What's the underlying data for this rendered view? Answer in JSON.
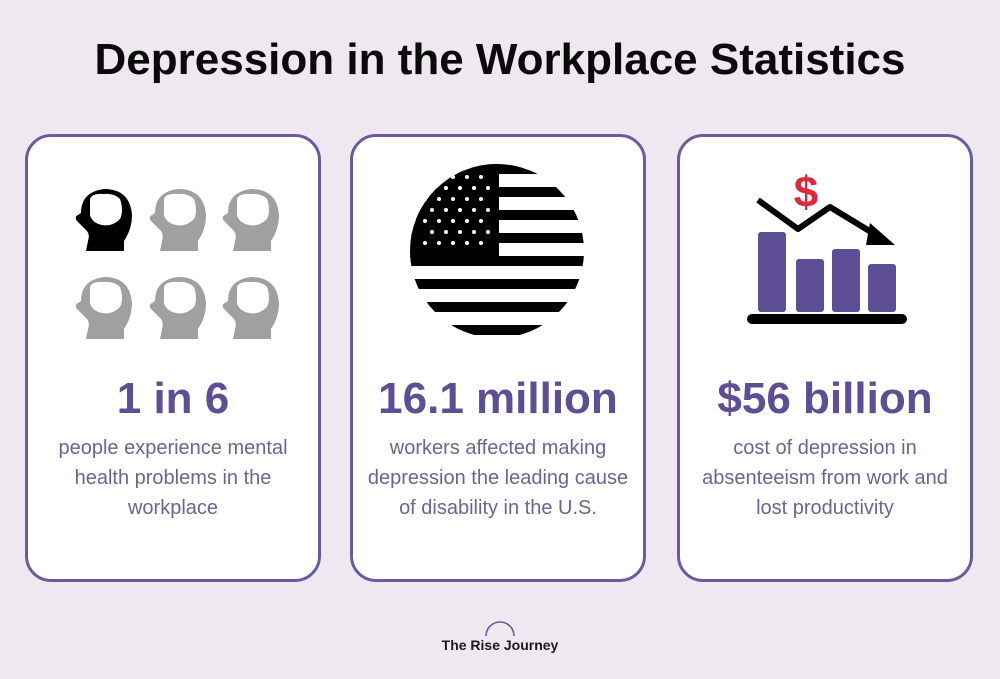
{
  "title": "Depression in the Workplace Statistics",
  "cards": [
    {
      "stat": "1 in 6",
      "description": "people experience mental health problems in the workplace",
      "icon": "heads-icon"
    },
    {
      "stat": "16.1 million",
      "description": "workers affected making depression the leading cause of disability in the U.S.",
      "icon": "us-flag-icon"
    },
    {
      "stat": "$56 billion",
      "description": "cost of depression in absenteeism from work and lost productivity",
      "icon": "declining-chart-icon"
    }
  ],
  "footer": {
    "brand": "The Rise Journey"
  },
  "colors": {
    "background": "#f0e8f1",
    "accent": "#5e4e96",
    "border": "#6a5a9e",
    "dollar": "#e0283a",
    "head_dark": "#000000",
    "head_light": "#a0a0a0"
  }
}
